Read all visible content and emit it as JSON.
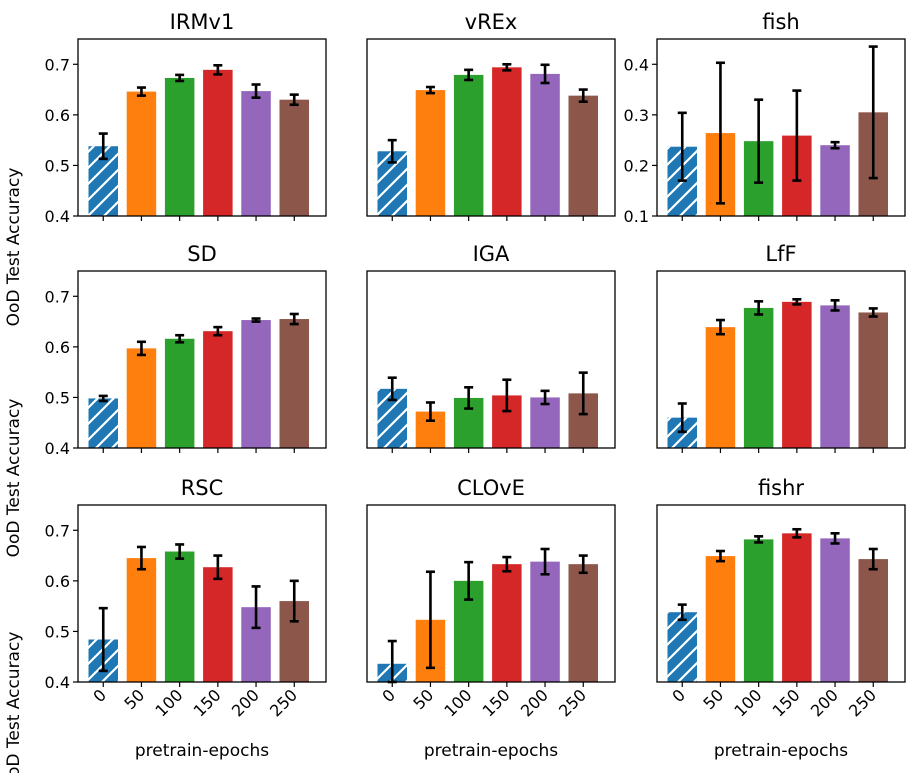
{
  "figure": {
    "ylabel": "OoD Test Accuracy",
    "xlabel": "pretrain-epochs"
  },
  "colors": {
    "bars": [
      "#1f77b4",
      "#ff7f0e",
      "#2ca02c",
      "#d62728",
      "#9467bd",
      "#8c564b"
    ],
    "error": "#000000"
  },
  "chart_data": [
    {
      "type": "bar",
      "title": "IRMv1",
      "categories": [
        "0",
        "50",
        "100",
        "150",
        "200",
        "250"
      ],
      "values": [
        0.538,
        0.646,
        0.673,
        0.689,
        0.647,
        0.63
      ],
      "errors": [
        0.025,
        0.008,
        0.006,
        0.009,
        0.013,
        0.01
      ],
      "ylim": [
        0.4,
        0.75
      ],
      "yticks": [
        "0.4",
        "0.5",
        "0.6",
        "0.7"
      ],
      "hatched_first": true
    },
    {
      "type": "bar",
      "title": "vREx",
      "categories": [
        "0",
        "50",
        "100",
        "150",
        "200",
        "250"
      ],
      "values": [
        0.528,
        0.649,
        0.679,
        0.694,
        0.681,
        0.638
      ],
      "errors": [
        0.022,
        0.006,
        0.01,
        0.006,
        0.018,
        0.012
      ],
      "ylim": [
        0.4,
        0.75
      ],
      "yticks": [],
      "hatched_first": true
    },
    {
      "type": "bar",
      "title": "fish",
      "categories": [
        "0",
        "50",
        "100",
        "150",
        "200",
        "250"
      ],
      "values": [
        0.237,
        0.264,
        0.248,
        0.259,
        0.24,
        0.305
      ],
      "errors": [
        0.067,
        0.139,
        0.082,
        0.089,
        0.006,
        0.13
      ],
      "ylim": [
        0.1,
        0.45
      ],
      "yticks": [
        "0.1",
        "0.2",
        "0.3",
        "0.4"
      ],
      "hatched_first": true
    },
    {
      "type": "bar",
      "title": "SD",
      "categories": [
        "0",
        "50",
        "100",
        "150",
        "200",
        "250"
      ],
      "values": [
        0.498,
        0.597,
        0.616,
        0.631,
        0.653,
        0.655
      ],
      "errors": [
        0.005,
        0.013,
        0.007,
        0.008,
        0.003,
        0.01
      ],
      "ylim": [
        0.4,
        0.75
      ],
      "yticks": [
        "0.4",
        "0.5",
        "0.6",
        "0.7"
      ],
      "hatched_first": true
    },
    {
      "type": "bar",
      "title": "IGA",
      "categories": [
        "0",
        "50",
        "100",
        "150",
        "200",
        "250"
      ],
      "values": [
        0.517,
        0.472,
        0.499,
        0.504,
        0.5,
        0.508
      ],
      "errors": [
        0.022,
        0.018,
        0.021,
        0.031,
        0.013,
        0.041
      ],
      "ylim": [
        0.4,
        0.75
      ],
      "yticks": [],
      "hatched_first": true
    },
    {
      "type": "bar",
      "title": "LfF",
      "categories": [
        "0",
        "50",
        "100",
        "150",
        "200",
        "250"
      ],
      "values": [
        0.46,
        0.639,
        0.677,
        0.689,
        0.682,
        0.668
      ],
      "errors": [
        0.028,
        0.014,
        0.013,
        0.005,
        0.01,
        0.008
      ],
      "ylim": [
        0.4,
        0.75
      ],
      "yticks": [],
      "hatched_first": true
    },
    {
      "type": "bar",
      "title": "RSC",
      "categories": [
        "0",
        "50",
        "100",
        "150",
        "200",
        "250"
      ],
      "values": [
        0.484,
        0.645,
        0.658,
        0.627,
        0.548,
        0.56
      ],
      "errors": [
        0.062,
        0.022,
        0.014,
        0.023,
        0.041,
        0.04
      ],
      "ylim": [
        0.4,
        0.75
      ],
      "yticks": [
        "0.4",
        "0.5",
        "0.6",
        "0.7"
      ],
      "hatched_first": true
    },
    {
      "type": "bar",
      "title": "CLOvE",
      "categories": [
        "0",
        "50",
        "100",
        "150",
        "200",
        "250"
      ],
      "values": [
        0.436,
        0.523,
        0.6,
        0.633,
        0.638,
        0.633
      ],
      "errors": [
        0.045,
        0.095,
        0.037,
        0.014,
        0.025,
        0.017
      ],
      "ylim": [
        0.4,
        0.75
      ],
      "yticks": [],
      "hatched_first": true
    },
    {
      "type": "bar",
      "title": "fishr",
      "categories": [
        "0",
        "50",
        "100",
        "150",
        "200",
        "250"
      ],
      "values": [
        0.538,
        0.649,
        0.682,
        0.694,
        0.684,
        0.643
      ],
      "errors": [
        0.015,
        0.01,
        0.006,
        0.008,
        0.01,
        0.02
      ],
      "ylim": [
        0.4,
        0.75
      ],
      "yticks": [],
      "hatched_first": true
    }
  ]
}
